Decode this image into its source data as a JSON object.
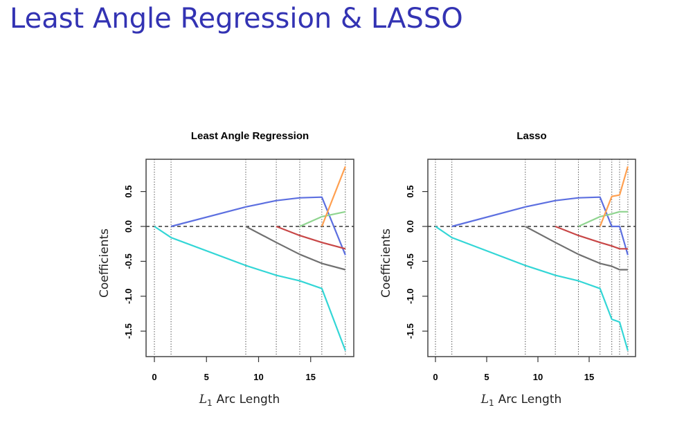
{
  "slide": {
    "title": "Least Angle Regression & LASSO"
  },
  "chart_data": [
    {
      "type": "line",
      "title": "Least Angle Regression",
      "xlabel_var": "L",
      "xlabel_sub": "1",
      "xlabel_text": "Arc Length",
      "ylabel": "Coefficients",
      "xlim": [
        0,
        18.33
      ],
      "ylim": [
        -1.82,
        0.9
      ],
      "xticks": [
        0,
        5,
        10,
        15
      ],
      "xtick_labels": [
        "0",
        "5",
        "10",
        "15"
      ],
      "yticks": [
        0.5,
        0.0,
        -0.5,
        -1.0,
        -1.5
      ],
      "ytick_labels": [
        "0.5",
        "0.0",
        "-0.5",
        "-1.0",
        "-1.5"
      ],
      "breakpoints": [
        0,
        1.6,
        8.77,
        11.7,
        13.95,
        16.07,
        18.33
      ],
      "zero_line": true,
      "series": [
        {
          "name": "cyan",
          "color": "#33d6d6",
          "x": [
            0,
            1.6,
            8.77,
            11.7,
            13.95,
            16.07,
            18.33
          ],
          "y": [
            0,
            -0.16,
            -0.56,
            -0.7,
            -0.78,
            -0.89,
            -1.78
          ]
        },
        {
          "name": "blue",
          "color": "#5c6fe0",
          "x": [
            1.6,
            8.77,
            11.7,
            13.95,
            16.07,
            18.33
          ],
          "y": [
            0,
            0.28,
            0.37,
            0.41,
            0.42,
            -0.41
          ]
        },
        {
          "name": "gray",
          "color": "#707070",
          "x": [
            8.77,
            11.7,
            13.95,
            16.07,
            18.33
          ],
          "y": [
            0,
            -0.23,
            -0.4,
            -0.53,
            -0.62
          ]
        },
        {
          "name": "red",
          "color": "#c84646",
          "x": [
            11.7,
            13.95,
            16.07,
            18.33
          ],
          "y": [
            0,
            -0.13,
            -0.23,
            -0.32
          ]
        },
        {
          "name": "green",
          "color": "#8fd48f",
          "x": [
            13.95,
            16.07,
            18.33
          ],
          "y": [
            0,
            0.14,
            0.21
          ]
        },
        {
          "name": "orange",
          "color": "#ff9f4f",
          "x": [
            16.07,
            18.33
          ],
          "y": [
            0,
            0.86
          ]
        }
      ]
    },
    {
      "type": "line",
      "title": "Lasso",
      "xlabel_var": "L",
      "xlabel_sub": "1",
      "xlabel_text": "Arc Length",
      "ylabel": "Coefficients",
      "xlim": [
        0,
        18.78
      ],
      "ylim": [
        -1.82,
        0.9
      ],
      "xticks": [
        0,
        5,
        10,
        15
      ],
      "xtick_labels": [
        "0",
        "5",
        "10",
        "15"
      ],
      "yticks": [
        0.5,
        0.0,
        -0.5,
        -1.0,
        -1.5
      ],
      "ytick_labels": [
        "0.5",
        "0.0",
        "-0.5",
        "-1.0",
        "-1.5"
      ],
      "breakpoints": [
        0,
        1.6,
        8.77,
        11.7,
        13.95,
        16.06,
        17.21,
        17.97,
        18.78
      ],
      "zero_line": true,
      "series": [
        {
          "name": "cyan",
          "color": "#33d6d6",
          "x": [
            0,
            1.6,
            8.77,
            11.7,
            13.95,
            16.06,
            17.21,
            17.97,
            18.78
          ],
          "y": [
            0,
            -0.16,
            -0.56,
            -0.7,
            -0.78,
            -0.89,
            -1.33,
            -1.37,
            -1.78
          ]
        },
        {
          "name": "blue",
          "color": "#5c6fe0",
          "x": [
            1.6,
            8.77,
            11.7,
            13.95,
            16.06,
            17.21,
            17.97,
            18.78
          ],
          "y": [
            0,
            0.28,
            0.37,
            0.41,
            0.42,
            0,
            0,
            -0.41
          ]
        },
        {
          "name": "gray",
          "color": "#707070",
          "x": [
            8.77,
            11.7,
            13.95,
            16.06,
            17.21,
            17.97,
            18.78
          ],
          "y": [
            0,
            -0.23,
            -0.4,
            -0.53,
            -0.57,
            -0.62,
            -0.62
          ]
        },
        {
          "name": "red",
          "color": "#c84646",
          "x": [
            11.7,
            13.95,
            16.06,
            17.21,
            17.97,
            18.78
          ],
          "y": [
            0,
            -0.13,
            -0.23,
            -0.28,
            -0.32,
            -0.32
          ]
        },
        {
          "name": "green",
          "color": "#8fd48f",
          "x": [
            13.95,
            16.06,
            17.21,
            17.97,
            18.78
          ],
          "y": [
            0,
            0.14,
            0.18,
            0.21,
            0.21
          ]
        },
        {
          "name": "orange",
          "color": "#ff9f4f",
          "x": [
            16.06,
            17.21,
            17.97,
            18.78
          ],
          "y": [
            0,
            0.43,
            0.45,
            0.86
          ]
        }
      ]
    }
  ]
}
